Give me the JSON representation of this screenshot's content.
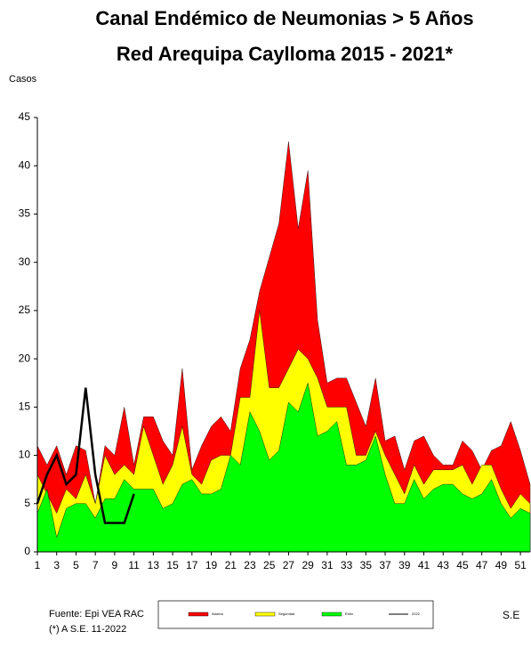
{
  "chart_data": {
    "type": "area",
    "title": "Canal Endémico de Neumonias > 5 Años",
    "subtitle": "Red Arequipa Caylloma 2015 - 2021*",
    "y_label": "Casos",
    "x_label": "S.E",
    "source": "Fuente: Epi VEA RAC",
    "note": "(*) A S.E. 11-2022",
    "x": [
      1,
      2,
      3,
      4,
      5,
      6,
      7,
      8,
      9,
      10,
      11,
      12,
      13,
      14,
      15,
      16,
      17,
      18,
      19,
      20,
      21,
      22,
      23,
      24,
      25,
      26,
      27,
      28,
      29,
      30,
      31,
      32,
      33,
      34,
      35,
      36,
      37,
      38,
      39,
      40,
      41,
      42,
      43,
      44,
      45,
      46,
      47,
      48,
      49,
      50,
      51,
      52
    ],
    "xlim": [
      1,
      52
    ],
    "xticks": [
      1,
      3,
      5,
      7,
      9,
      11,
      13,
      15,
      17,
      19,
      21,
      23,
      25,
      27,
      29,
      31,
      33,
      35,
      37,
      39,
      41,
      43,
      45,
      47,
      49,
      51
    ],
    "ylim": [
      0,
      45
    ],
    "yticks": [
      0,
      5,
      10,
      15,
      20,
      25,
      30,
      35,
      40,
      45
    ],
    "series": [
      {
        "name": "Alarma",
        "color": "#ff0000",
        "values": [
          11,
          9,
          11,
          8,
          11,
          10.5,
          5,
          11,
          10,
          15,
          9,
          14,
          14,
          11.5,
          10,
          19,
          8.5,
          11,
          13,
          14,
          12.5,
          19,
          22,
          27,
          30.5,
          34,
          42.5,
          33.5,
          39.5,
          24,
          17.5,
          18,
          18,
          15.5,
          13,
          18,
          11.5,
          12,
          8.5,
          11.5,
          12,
          10,
          9,
          9,
          11.5,
          10.5,
          8.5,
          10.5,
          11,
          13.5,
          10.5,
          7
        ]
      },
      {
        "name": "Seguridad",
        "color": "#ffff00",
        "values": [
          8,
          6,
          4,
          6.5,
          5.5,
          8,
          5,
          10,
          8,
          9,
          8,
          13,
          10,
          7,
          9,
          13,
          8,
          7,
          9.5,
          10,
          10,
          16,
          16,
          25,
          17,
          17,
          19,
          21,
          20,
          18,
          15,
          15,
          15,
          10,
          10,
          12.5,
          10,
          8,
          6,
          9,
          7,
          8.5,
          8.5,
          8.5,
          9,
          7,
          9,
          9,
          6.5,
          4.5,
          6,
          5
        ]
      },
      {
        "name": "Éxito",
        "color": "#00ff00",
        "values": [
          4,
          6.5,
          1.5,
          4.5,
          5,
          5,
          3.5,
          5.5,
          5.5,
          7.5,
          6.5,
          6.5,
          6.5,
          4.5,
          5,
          7,
          7.5,
          6,
          6,
          6.5,
          10,
          9,
          14.5,
          12.5,
          9.5,
          10.5,
          15.5,
          14.5,
          17.5,
          12,
          12.5,
          13.5,
          9,
          9,
          9.5,
          12,
          8,
          5,
          5,
          7.5,
          5.5,
          6.5,
          7,
          7,
          6,
          5.5,
          6,
          7.5,
          5,
          3.5,
          4.5,
          4
        ]
      },
      {
        "name": "2022",
        "color": "#000000",
        "line": true,
        "values": [
          5,
          8,
          10,
          7,
          8,
          17,
          8,
          3,
          3,
          3,
          6,
          null,
          null,
          null,
          null,
          null,
          null,
          null,
          null,
          null,
          null,
          null,
          null,
          null,
          null,
          null,
          null,
          null,
          null,
          null,
          null,
          null,
          null,
          null,
          null,
          null,
          null,
          null,
          null,
          null,
          null,
          null,
          null,
          null,
          null,
          null,
          null,
          null,
          null,
          null,
          null,
          null
        ]
      }
    ]
  }
}
